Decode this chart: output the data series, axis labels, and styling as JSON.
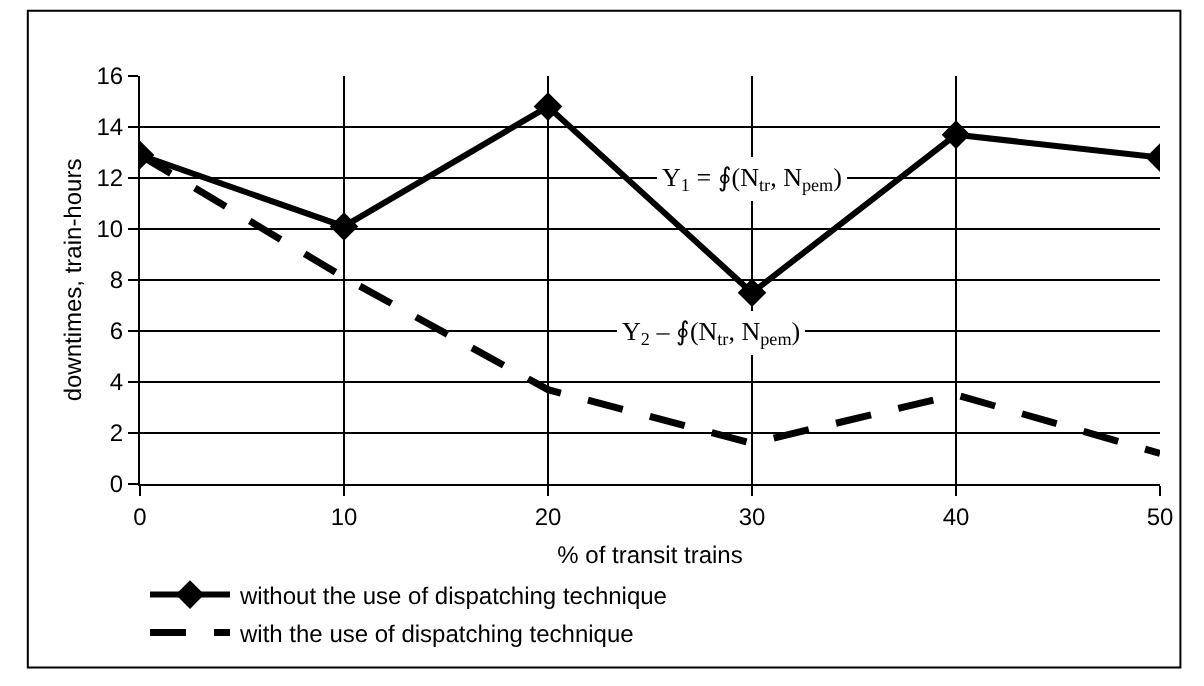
{
  "chart_data": {
    "type": "line",
    "xlabel": "% of transit trains",
    "ylabel": "downtimes, train-hours",
    "x": [
      0,
      10,
      20,
      30,
      40,
      50
    ],
    "series": [
      {
        "name": "without the use of dispatching technique",
        "color": "#000000",
        "marker": "diamond",
        "line_style": "solid",
        "values": [
          12.9,
          10.1,
          14.8,
          7.5,
          13.7,
          12.8
        ]
      },
      {
        "name": "with the use of dispatching technique",
        "color": "#000000",
        "marker": "none",
        "line_style": "dashed",
        "values": [
          12.9,
          8.1,
          3.7,
          1.6,
          3.5,
          1.2
        ]
      }
    ],
    "xlim": [
      0,
      50
    ],
    "xticks": [
      0,
      10,
      20,
      30,
      40,
      50
    ],
    "ylim": [
      0,
      16
    ],
    "yticks": [
      0,
      2,
      4,
      6,
      8,
      10,
      12,
      14,
      16
    ],
    "grid": true,
    "legend": "bottom left",
    "annotations": [
      "Y$_{1}$ = ∮(N$_{tr}$, N$_{pem}$)",
      "Y$_{2}$ – ∮(N$_{tr}$, N$_{pem}$)"
    ]
  }
}
